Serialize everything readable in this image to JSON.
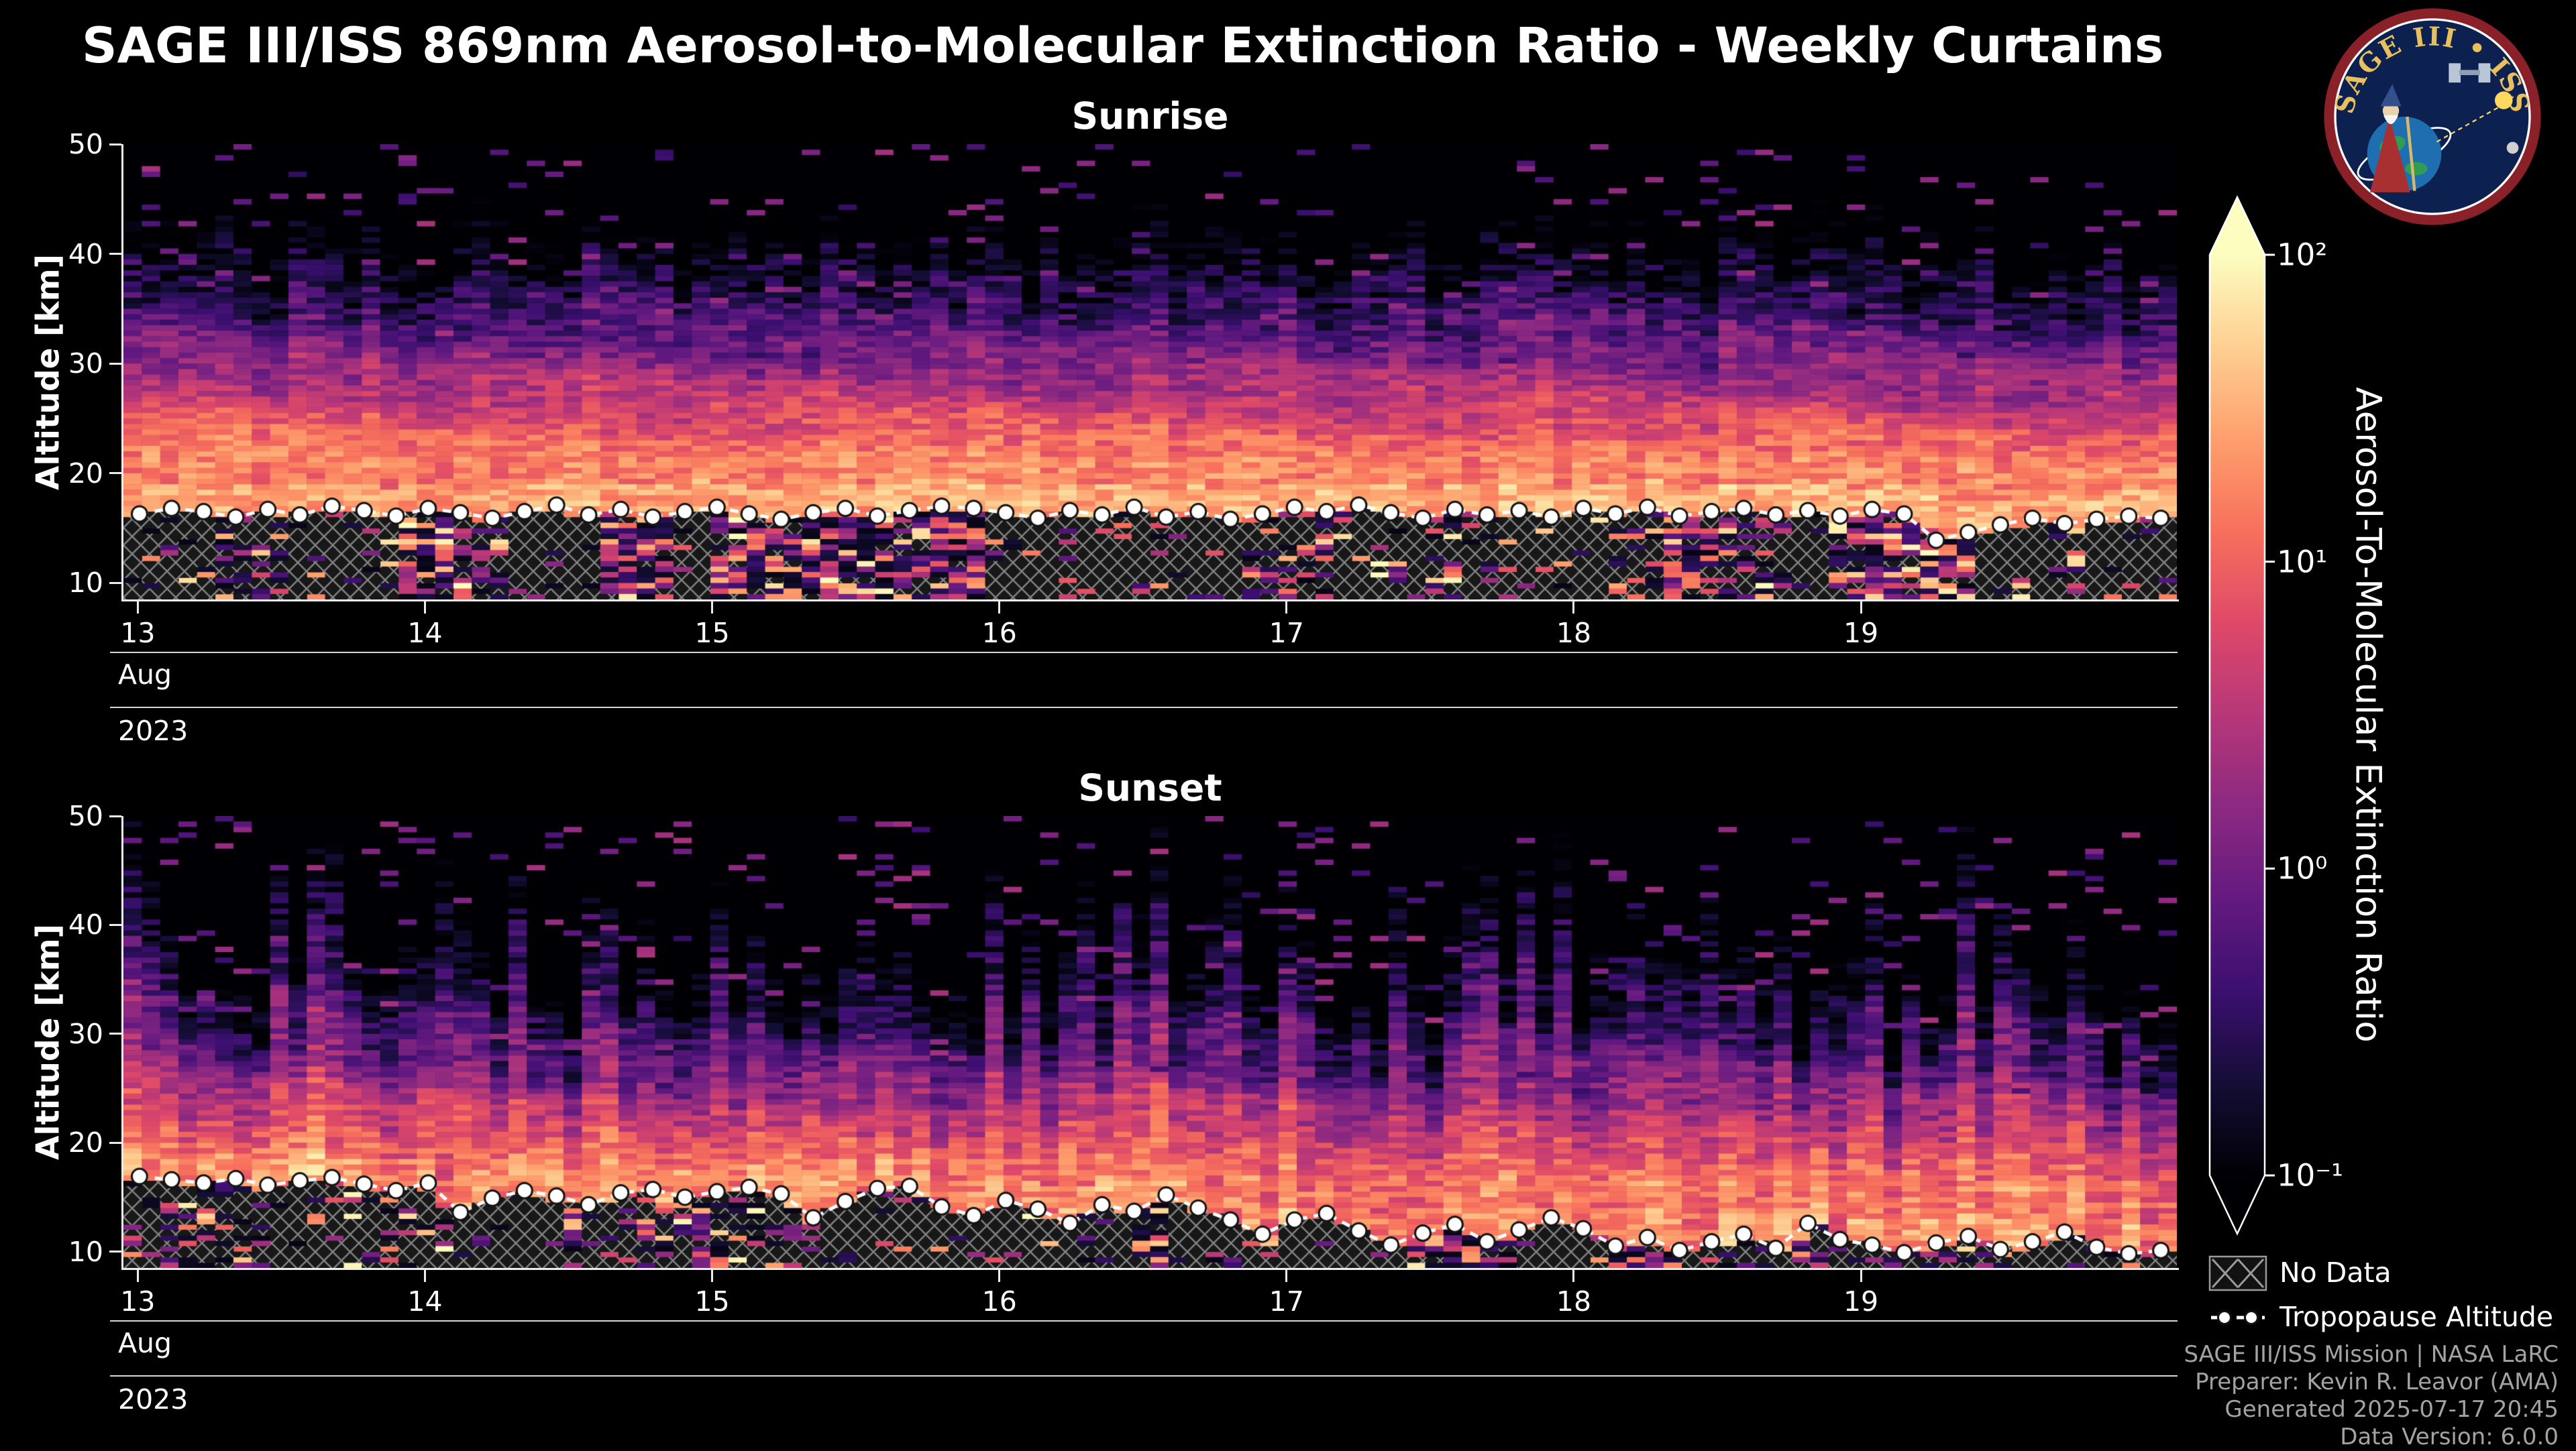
{
  "header": {
    "title": "SAGE III/ISS 869nm Aerosol-to-Molecular Extinction Ratio - Weekly Curtains"
  },
  "logo": {
    "arc_text": "SAGE III • ISS"
  },
  "chart_data": {
    "type": "heatmap",
    "value_label": "Aerosol-To-Molecular Extinction Ratio",
    "x_axis": {
      "month_label": "Aug",
      "year_label": "2023",
      "tick_days": [
        13,
        14,
        15,
        16,
        17,
        18,
        19
      ]
    },
    "panels": [
      {
        "title": "Sunrise",
        "ylabel": "Altitude [km]",
        "ylim": [
          8.5,
          50
        ],
        "yticks": [
          10,
          20,
          30,
          40,
          50
        ],
        "xticks": [
          13,
          14,
          15,
          16,
          17,
          18,
          19
        ],
        "xlim_days": [
          12.95,
          20.1
        ],
        "month_label": "Aug",
        "year_label": "2023",
        "tropopause_km": [
          16.3,
          16.8,
          16.5,
          16.0,
          16.7,
          16.2,
          17.0,
          16.6,
          16.1,
          16.8,
          16.4,
          15.9,
          16.5,
          17.1,
          16.2,
          16.7,
          16.0,
          16.5,
          16.9,
          16.3,
          15.8,
          16.4,
          16.8,
          16.1,
          16.6,
          17.0,
          16.8,
          16.4,
          15.9,
          16.6,
          16.2,
          16.9,
          16.0,
          16.5,
          15.8,
          16.3,
          16.9,
          16.5,
          17.1,
          16.4,
          15.9,
          16.7,
          16.2,
          16.6,
          16.0,
          16.8,
          16.3,
          16.9,
          16.1,
          16.5,
          16.8,
          16.2,
          16.6,
          16.1,
          16.7,
          16.3,
          13.9,
          14.6,
          15.3,
          15.9,
          15.4,
          15.8,
          16.1,
          15.9
        ],
        "gen": {
          "seed": 1337,
          "cols": 112,
          "row_km": 0.5,
          "band_center_start": 22.0,
          "band_center_slope": -0.25,
          "band_peak_log": 1.25,
          "band_top_fall": 0.125,
          "fall_jitter": 0.3,
          "below_fall": 0.02,
          "trop_bonus": 0.3,
          "noise": 0.3,
          "column_noise": 0.12
        }
      },
      {
        "title": "Sunset",
        "ylabel": "Altitude [km]",
        "ylim": [
          8.5,
          50
        ],
        "yticks": [
          10,
          20,
          30,
          40,
          50
        ],
        "xticks": [
          13,
          14,
          15,
          16,
          17,
          18,
          19
        ],
        "xlim_days": [
          12.95,
          20.1
        ],
        "month_label": "Aug",
        "year_label": "2023",
        "tropopause_km": [
          16.9,
          16.6,
          16.3,
          16.7,
          16.1,
          16.5,
          16.8,
          16.2,
          15.6,
          16.3,
          13.6,
          14.9,
          15.6,
          15.1,
          14.3,
          15.4,
          15.7,
          15.0,
          15.5,
          15.9,
          15.3,
          13.1,
          14.6,
          15.8,
          16.0,
          14.1,
          13.3,
          14.7,
          13.9,
          12.6,
          14.3,
          13.7,
          15.2,
          14.0,
          12.9,
          11.6,
          12.9,
          13.5,
          11.9,
          10.6,
          11.7,
          12.5,
          10.9,
          12.0,
          13.1,
          12.1,
          10.5,
          11.3,
          10.1,
          10.9,
          11.6,
          10.3,
          12.6,
          11.1,
          10.6,
          9.9,
          10.8,
          11.4,
          10.2,
          10.9,
          11.8,
          10.4,
          9.8,
          10.1
        ],
        "gen": {
          "seed": 777,
          "cols": 112,
          "row_km": 0.5,
          "band_center_start": 19.0,
          "band_center_slope": -0.5,
          "band_peak_log": 1.15,
          "band_top_fall": 0.125,
          "fall_jitter": 0.8,
          "below_fall": 0.025,
          "trop_bonus": 0.2,
          "noise": 0.34,
          "column_noise": 0.26
        }
      }
    ],
    "colorbar": {
      "label": "Aerosol-To-Molecular Extinction Ratio",
      "scale": "log",
      "range_log10": [
        -1,
        2
      ],
      "ticks": [
        {
          "label": "10²",
          "log10": 2
        },
        {
          "label": "10¹",
          "log10": 1
        },
        {
          "label": "10⁰",
          "log10": 0
        },
        {
          "label": "10⁻¹",
          "log10": -1
        }
      ],
      "colormap": "magma",
      "colormap_stops": [
        "#000004",
        "#140e36",
        "#3b0f70",
        "#641a80",
        "#8c2981",
        "#b73779",
        "#de4968",
        "#f7705c",
        "#fe9f6d",
        "#fecf92",
        "#fcfdbf"
      ]
    },
    "legend": [
      {
        "label": "No Data",
        "symbol": "cross-hatch"
      },
      {
        "label": "Tropopause Altitude",
        "symbol": "dashed-line-with-markers"
      }
    ]
  },
  "footer": {
    "lines": [
      "SAGE III/ISS Mission | NASA LaRC",
      "Preparer: Kevin R. Leavor (AMA)",
      "Generated 2025-07-17 20:45",
      "Data Version: 6.0.0"
    ]
  },
  "colors": {
    "background": "#000000",
    "text": "#ffffff",
    "footer_text": "#a3a3a3"
  }
}
